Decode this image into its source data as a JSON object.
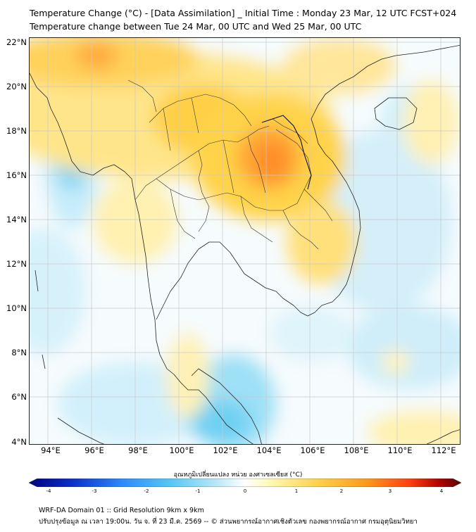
{
  "header": {
    "title_line1": "Temperature Change (°C) - [Data Assimilation] _ Initial Time : Monday 23 Mar, 12 UTC FCST+024",
    "title_line2": "Temperature change between Tue 24 Mar, 00 UTC and Wed 25 Mar, 00 UTC"
  },
  "map": {
    "lat_labels": [
      "22°N",
      "20°N",
      "18°N",
      "16°N",
      "14°N",
      "12°N",
      "10°N",
      "8°N",
      "6°N",
      "4°N"
    ],
    "lon_labels": [
      "94°E",
      "96°E",
      "98°E",
      "100°E",
      "102°E",
      "104°E",
      "106°E",
      "108°E",
      "110°E",
      "112°E"
    ],
    "lat_range": [
      4,
      22.2
    ],
    "lon_range": [
      93.1,
      112.9
    ],
    "grid": true,
    "warm_center": "16.8°N 103.5°E"
  },
  "colorbar": {
    "title": "อุณหภูมิเปลี่ยนแปลง หน่วย องศาเซลเซียส (°C)",
    "ticks": [
      "-4",
      "-3",
      "-2",
      "-1",
      "0",
      "1",
      "2",
      "3",
      "4"
    ],
    "range": [
      -4,
      4
    ],
    "colors": [
      "#000080",
      "#0a2fc8",
      "#2f8cff",
      "#56c8f4",
      "#bfeaf8",
      "#ffffff",
      "#fff8b0",
      "#ffd04a",
      "#ff9a1a",
      "#ff4010",
      "#b00000",
      "#5a0000"
    ]
  },
  "footer": {
    "line1": "WRF-DA Domain 01 :: Grid Resolution 9km x 9km",
    "line2": "ปรับปรุงข้อมูล ณ เวลา 19:00น. วัน จ. ที่ 23 มี.ค. 2569 -- © ส่วนพยากรณ์อากาศเชิงตัวเลข กองพยากรณ์อากาศ กรมอุตุนิยมวิทยา"
  }
}
